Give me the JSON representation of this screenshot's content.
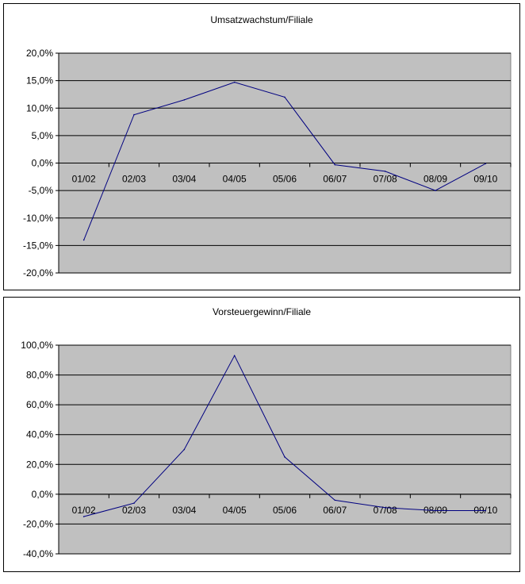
{
  "chart_data": [
    {
      "type": "line",
      "title": "Umsatzwachstum/Filiale",
      "categories": [
        "01/02",
        "02/03",
        "03/04",
        "04/05",
        "05/06",
        "06/07",
        "07/08",
        "08/09",
        "09/10"
      ],
      "values": [
        -14.0,
        8.8,
        11.5,
        14.7,
        12.0,
        -0.3,
        -1.5,
        -5.0,
        -0.1
      ],
      "yticks": [
        "20,0%",
        "15,0%",
        "10,0%",
        "5,0%",
        "0,0%",
        "-5,0%",
        "-10,0%",
        "-15,0%",
        "-20,0%"
      ],
      "ylim": [
        -20,
        20
      ],
      "ystep": 5,
      "grid": true,
      "plot_bg": "#c0c0c0",
      "line_color": "#000080"
    },
    {
      "type": "line",
      "title": "Vorsteuergewinn/Filiale",
      "categories": [
        "01/02",
        "02/03",
        "03/04",
        "04/05",
        "05/06",
        "06/07",
        "07/08",
        "08/09",
        "09/10"
      ],
      "values": [
        -15.0,
        -6.0,
        30.0,
        93.0,
        25.0,
        -4.0,
        -9.0,
        -11.0,
        -11.0
      ],
      "yticks": [
        "100,0%",
        "80,0%",
        "60,0%",
        "40,0%",
        "20,0%",
        "0,0%",
        "-20,0%",
        "-40,0%"
      ],
      "ylim": [
        -40,
        100
      ],
      "ystep": 20,
      "grid": true,
      "plot_bg": "#c0c0c0",
      "line_color": "#000080"
    }
  ]
}
